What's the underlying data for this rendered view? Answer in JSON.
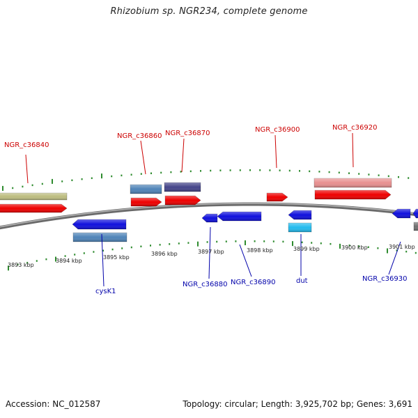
{
  "title": "Rhizobium sp. NGR234, complete genome",
  "footer": {
    "accession": "Accession: NC_012587",
    "topology": "Topology: circular; Length: 3,925,702 bp; Genes: 3,691"
  },
  "colors": {
    "backbone": "#8a8a8a",
    "tick": "#2e8b2e",
    "gene_red": "#ee0000",
    "gene_blue": "#1010dd",
    "gene_steel": "#4f84b8",
    "gene_slate": "#45458a",
    "gene_khaki": "#bdbd80",
    "gene_pink": "#e89090",
    "gene_cyan": "#22bbee",
    "gene_gray": "#707070",
    "label_top": "#cc0000",
    "label_bottom": "#0000aa"
  },
  "scale_labels": [
    "3893 kbp",
    "3894 kbp",
    "3895 kbp",
    "3896 kbp",
    "3897 kbp",
    "3898 kbp",
    "3899 kbp",
    "3900 kbp",
    "3901 kbp"
  ],
  "labels_top": [
    "NGR_c36840",
    "NGR_c36860",
    "NGR_c36870",
    "NGR_c36900",
    "NGR_c36920"
  ],
  "labels_bottom": [
    "cysK1",
    "NGR_c36880",
    "NGR_c36890",
    "dut",
    "NGR_c36930"
  ]
}
